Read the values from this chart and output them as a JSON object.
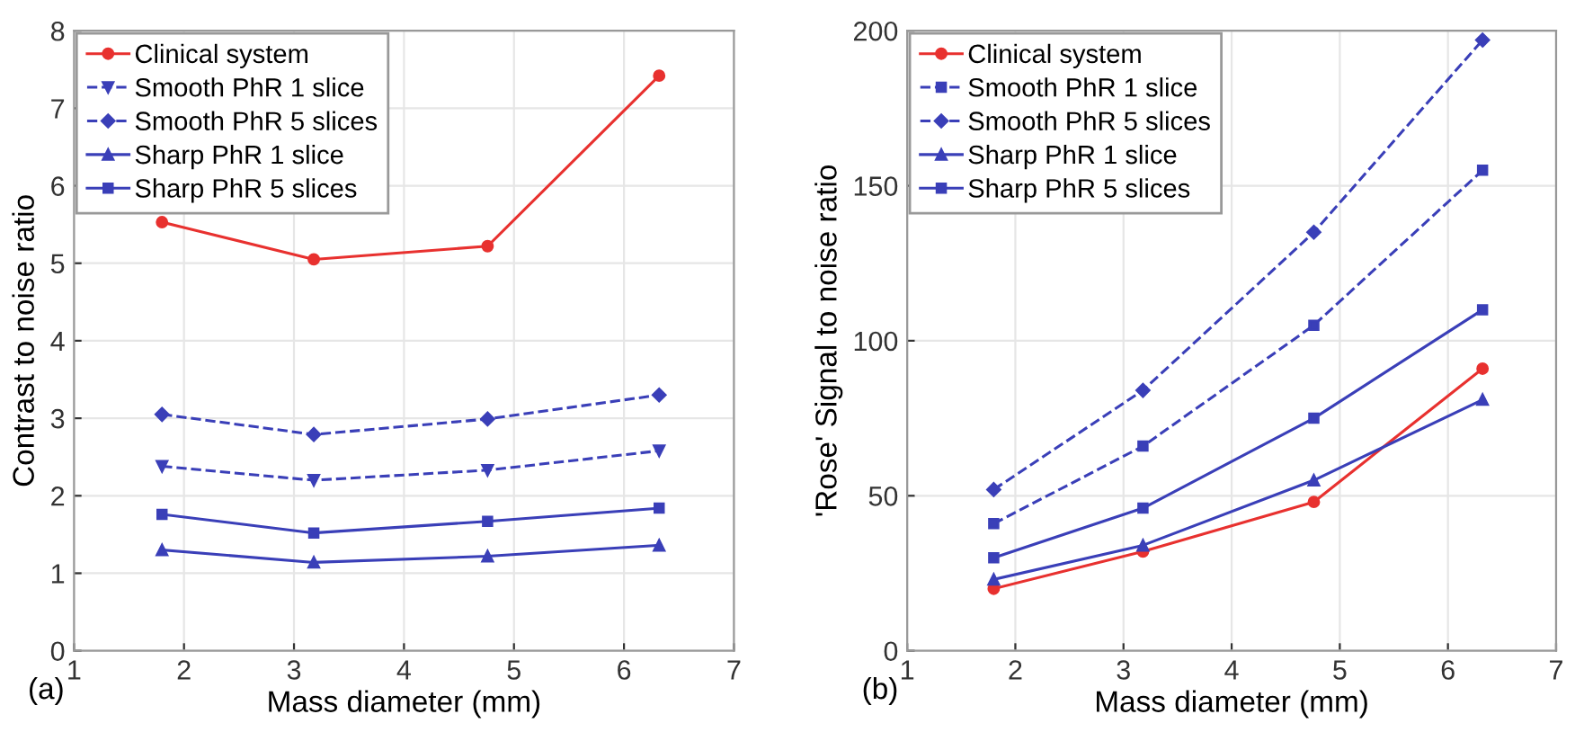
{
  "chart_data": [
    {
      "type": "line",
      "ylabel": "Contrast to noise ratio",
      "xlabel": "Mass diameter (mm)",
      "annotations": [
        "(a)"
      ],
      "x": [
        1.8,
        3.18,
        4.76,
        6.32
      ],
      "xlim": [
        1,
        7
      ],
      "xticks": [
        1,
        2,
        3,
        4,
        5,
        6,
        7
      ],
      "ylim": [
        0,
        8
      ],
      "yticks": [
        0,
        1,
        2,
        3,
        4,
        5,
        6,
        7,
        8
      ],
      "grid": true,
      "legend": "top left",
      "series": [
        {
          "name": "Clinical system",
          "color": "#e8312f",
          "marker": "circle",
          "line_style": "solid",
          "values": [
            5.53,
            5.05,
            5.22,
            7.42
          ]
        },
        {
          "name": "Smooth PhR 1 slice",
          "color": "#3a3fb8",
          "marker": "triangle_down",
          "line_style": "dashed",
          "values": [
            2.38,
            2.2,
            2.33,
            2.58
          ]
        },
        {
          "name": "Smooth PhR 5 slices",
          "color": "#3a3fb8",
          "marker": "diamond",
          "line_style": "dashed",
          "values": [
            3.05,
            2.79,
            2.99,
            3.3
          ]
        },
        {
          "name": "Sharp PhR 1 slice",
          "color": "#3a3fb8",
          "marker": "triangle",
          "line_style": "solid",
          "values": [
            1.3,
            1.14,
            1.22,
            1.36
          ]
        },
        {
          "name": "Sharp PhR 5 slices",
          "color": "#3a3fb8",
          "marker": "square",
          "line_style": "solid",
          "values": [
            1.76,
            1.52,
            1.67,
            1.84
          ]
        }
      ]
    },
    {
      "type": "line",
      "ylabel": "'Rose' Signal to noise ratio",
      "xlabel": "Mass diameter (mm)",
      "annotations": [
        "(b)"
      ],
      "x": [
        1.8,
        3.18,
        4.76,
        6.32
      ],
      "xlim": [
        1,
        7
      ],
      "xticks": [
        1,
        2,
        3,
        4,
        5,
        6,
        7
      ],
      "ylim": [
        0,
        200
      ],
      "yticks": [
        0,
        50,
        100,
        150,
        200
      ],
      "grid": true,
      "legend": "top left",
      "series": [
        {
          "name": "Clinical system",
          "color": "#e8312f",
          "marker": "circle",
          "line_style": "solid",
          "values": [
            20,
            32,
            48,
            91
          ]
        },
        {
          "name": "Smooth PhR 1 slice",
          "color": "#3a3fb8",
          "marker": "square",
          "line_style": "dashed",
          "values": [
            41,
            66,
            105,
            155
          ]
        },
        {
          "name": "Smooth PhR 5 slices",
          "color": "#3a3fb8",
          "marker": "diamond",
          "line_style": "dashed",
          "values": [
            52,
            84,
            135,
            197
          ]
        },
        {
          "name": "Sharp PhR 1 slice",
          "color": "#3a3fb8",
          "marker": "triangle",
          "line_style": "solid",
          "values": [
            23,
            34,
            55,
            81
          ]
        },
        {
          "name": "Sharp PhR 5 slices",
          "color": "#3a3fb8",
          "marker": "square",
          "line_style": "solid",
          "values": [
            30,
            46,
            75,
            110
          ]
        }
      ]
    }
  ]
}
